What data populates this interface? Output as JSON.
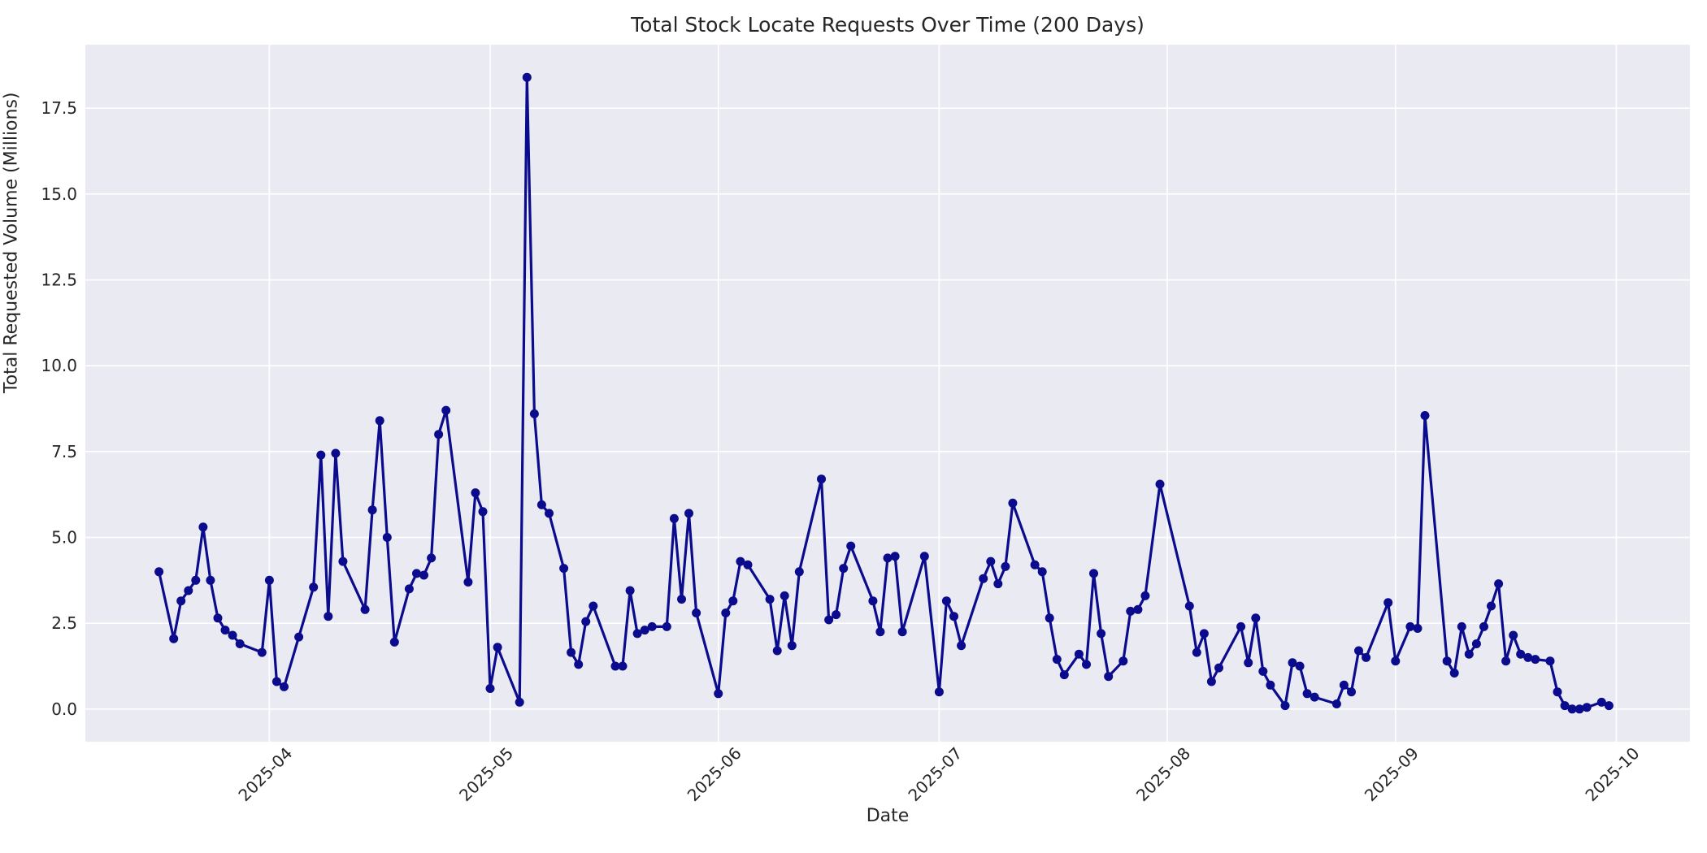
{
  "chart_data": {
    "type": "line",
    "title": "Total Stock Locate Requests Over Time (200 Days)",
    "xlabel": "Date",
    "ylabel": "Total Requested Volume (Millions)",
    "plot_background": "#eaeaf2",
    "grid": true,
    "grid_color": "#ffffff",
    "text_color": "#262626",
    "line_color": "#0b0b8d",
    "marker": "circle",
    "legend_position": "none",
    "ylim": [
      -0.95,
      19.35
    ],
    "xlim_dates": [
      "2025-03-07",
      "2025-10-11"
    ],
    "yticks": [
      {
        "value": 0.0,
        "label": "0.0"
      },
      {
        "value": 2.5,
        "label": "2.5"
      },
      {
        "value": 5.0,
        "label": "5.0"
      },
      {
        "value": 7.5,
        "label": "7.5"
      },
      {
        "value": 10.0,
        "label": "10.0"
      },
      {
        "value": 12.5,
        "label": "12.5"
      },
      {
        "value": 15.0,
        "label": "15.0"
      },
      {
        "value": 17.5,
        "label": "17.5"
      }
    ],
    "xticks": [
      {
        "date": "2025-04-01",
        "label": "2025-04"
      },
      {
        "date": "2025-05-01",
        "label": "2025-05"
      },
      {
        "date": "2025-06-01",
        "label": "2025-06"
      },
      {
        "date": "2025-07-01",
        "label": "2025-07"
      },
      {
        "date": "2025-08-01",
        "label": "2025-08"
      },
      {
        "date": "2025-09-01",
        "label": "2025-09"
      },
      {
        "date": "2025-10-01",
        "label": "2025-10"
      }
    ],
    "series": [
      {
        "name": "Total stock locate requests",
        "x": [
          "2025-03-17",
          "2025-03-19",
          "2025-03-20",
          "2025-03-21",
          "2025-03-22",
          "2025-03-23",
          "2025-03-24",
          "2025-03-25",
          "2025-03-26",
          "2025-03-27",
          "2025-03-28",
          "2025-03-31",
          "2025-04-01",
          "2025-04-02",
          "2025-04-03",
          "2025-04-05",
          "2025-04-07",
          "2025-04-08",
          "2025-04-09",
          "2025-04-10",
          "2025-04-11",
          "2025-04-14",
          "2025-04-15",
          "2025-04-16",
          "2025-04-17",
          "2025-04-18",
          "2025-04-20",
          "2025-04-21",
          "2025-04-22",
          "2025-04-23",
          "2025-04-24",
          "2025-04-25",
          "2025-04-28",
          "2025-04-29",
          "2025-04-30",
          "2025-05-01",
          "2025-05-02",
          "2025-05-05",
          "2025-05-06",
          "2025-05-07",
          "2025-05-08",
          "2025-05-09",
          "2025-05-11",
          "2025-05-12",
          "2025-05-13",
          "2025-05-14",
          "2025-05-15",
          "2025-05-18",
          "2025-05-19",
          "2025-05-20",
          "2025-05-21",
          "2025-05-22",
          "2025-05-23",
          "2025-05-25",
          "2025-05-26",
          "2025-05-27",
          "2025-05-28",
          "2025-05-29",
          "2025-06-01",
          "2025-06-02",
          "2025-06-03",
          "2025-06-04",
          "2025-06-05",
          "2025-06-08",
          "2025-06-09",
          "2025-06-10",
          "2025-06-11",
          "2025-06-12",
          "2025-06-15",
          "2025-06-16",
          "2025-06-17",
          "2025-06-18",
          "2025-06-19",
          "2025-06-22",
          "2025-06-23",
          "2025-06-24",
          "2025-06-25",
          "2025-06-26",
          "2025-06-29",
          "2025-07-01",
          "2025-07-02",
          "2025-07-03",
          "2025-07-04",
          "2025-07-07",
          "2025-07-08",
          "2025-07-09",
          "2025-07-10",
          "2025-07-11",
          "2025-07-14",
          "2025-07-15",
          "2025-07-16",
          "2025-07-17",
          "2025-07-18",
          "2025-07-20",
          "2025-07-21",
          "2025-07-22",
          "2025-07-23",
          "2025-07-24",
          "2025-07-26",
          "2025-07-27",
          "2025-07-28",
          "2025-07-29",
          "2025-07-31",
          "2025-08-04",
          "2025-08-05",
          "2025-08-06",
          "2025-08-07",
          "2025-08-08",
          "2025-08-11",
          "2025-08-12",
          "2025-08-13",
          "2025-08-14",
          "2025-08-15",
          "2025-08-17",
          "2025-08-18",
          "2025-08-19",
          "2025-08-20",
          "2025-08-21",
          "2025-08-24",
          "2025-08-25",
          "2025-08-26",
          "2025-08-27",
          "2025-08-28",
          "2025-08-31",
          "2025-09-01",
          "2025-09-03",
          "2025-09-04",
          "2025-09-05",
          "2025-09-08",
          "2025-09-09",
          "2025-09-10",
          "2025-09-11",
          "2025-09-12",
          "2025-09-13",
          "2025-09-14",
          "2025-09-15",
          "2025-09-16",
          "2025-09-17",
          "2025-09-18",
          "2025-09-19",
          "2025-09-20",
          "2025-09-22",
          "2025-09-23",
          "2025-09-24",
          "2025-09-25",
          "2025-09-26",
          "2025-09-27",
          "2025-09-29",
          "2025-09-30"
        ],
        "y": [
          4.0,
          2.05,
          3.15,
          3.45,
          3.75,
          5.3,
          3.75,
          2.65,
          2.3,
          2.15,
          1.9,
          1.65,
          3.75,
          0.8,
          0.65,
          2.1,
          3.55,
          7.4,
          2.7,
          7.45,
          4.3,
          2.9,
          5.8,
          8.4,
          5.0,
          1.95,
          3.5,
          3.95,
          3.9,
          4.4,
          8.0,
          8.7,
          3.7,
          6.3,
          5.75,
          0.6,
          1.8,
          0.2,
          18.4,
          8.6,
          5.95,
          5.7,
          4.1,
          1.65,
          1.3,
          2.55,
          3.0,
          1.25,
          1.25,
          3.45,
          2.2,
          2.3,
          2.4,
          2.4,
          5.55,
          3.2,
          5.7,
          2.8,
          0.45,
          2.8,
          3.15,
          4.3,
          4.2,
          3.2,
          1.7,
          3.3,
          1.85,
          4.0,
          6.7,
          2.6,
          2.75,
          4.1,
          4.75,
          3.15,
          2.25,
          4.4,
          4.45,
          2.25,
          4.45,
          0.5,
          3.15,
          2.7,
          1.85,
          3.8,
          4.3,
          3.65,
          4.15,
          6.0,
          4.2,
          4.0,
          2.65,
          1.45,
          1.0,
          1.6,
          1.3,
          3.95,
          2.2,
          0.95,
          1.4,
          2.85,
          2.9,
          3.3,
          6.55,
          3.0,
          1.65,
          2.2,
          0.8,
          1.2,
          2.4,
          1.35,
          2.65,
          1.1,
          0.7,
          0.1,
          1.35,
          1.25,
          0.45,
          0.35,
          0.15,
          0.7,
          0.5,
          1.7,
          1.5,
          3.1,
          1.4,
          2.4,
          2.35,
          8.55,
          1.4,
          1.05,
          2.4,
          1.6,
          1.9,
          2.4,
          3.0,
          3.65,
          1.4,
          2.15,
          1.6,
          1.5,
          1.45,
          1.4,
          0.5,
          0.1,
          0.0,
          0.0,
          0.05,
          0.2,
          0.1
        ]
      }
    ]
  },
  "layout_note": ""
}
